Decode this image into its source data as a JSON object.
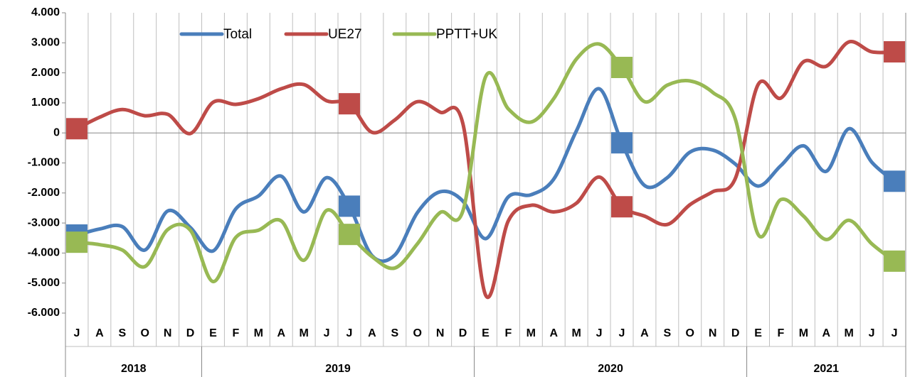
{
  "chart_data": {
    "type": "line",
    "category_groups": [
      {
        "label": "2018",
        "categories": [
          "J",
          "A",
          "S",
          "O",
          "N",
          "D"
        ]
      },
      {
        "label": "2019",
        "categories": [
          "E",
          "F",
          "M",
          "A",
          "M",
          "J",
          "J",
          "A",
          "S",
          "O",
          "N",
          "D"
        ]
      },
      {
        "label": "2020",
        "categories": [
          "E",
          "F",
          "M",
          "A",
          "M",
          "J",
          "J",
          "A",
          "S",
          "O",
          "N",
          "D"
        ]
      },
      {
        "label": "2021",
        "categories": [
          "E",
          "F",
          "M",
          "A",
          "M",
          "J",
          "J"
        ]
      }
    ],
    "series": [
      {
        "name": "Total",
        "color": "#4a7ebb",
        "values": [
          -3400,
          -3200,
          -3120,
          -3900,
          -2600,
          -3150,
          -3930,
          -2530,
          -2100,
          -1440,
          -2630,
          -1490,
          -2440,
          -4090,
          -4070,
          -2650,
          -1960,
          -2270,
          -3520,
          -2130,
          -2060,
          -1540,
          70,
          1470,
          -330,
          -1750,
          -1490,
          -640,
          -570,
          -1040,
          -1770,
          -1090,
          -430,
          -1280,
          140,
          -970,
          -1610
        ]
      },
      {
        "name": "UE27",
        "color": "#be4b48",
        "values": [
          140,
          520,
          780,
          570,
          620,
          -20,
          1020,
          950,
          1140,
          1470,
          1610,
          1070,
          970,
          20,
          430,
          1040,
          690,
          310,
          -5400,
          -2930,
          -2410,
          -2630,
          -2340,
          -1470,
          -2460,
          -2770,
          -3050,
          -2390,
          -1960,
          -1510,
          1610,
          1160,
          2370,
          2220,
          3030,
          2700,
          2700
        ]
      },
      {
        "name": "PPTT+UK",
        "color": "#98b954",
        "values": [
          -3640,
          -3720,
          -3900,
          -4450,
          -3220,
          -3240,
          -4950,
          -3480,
          -3240,
          -2930,
          -4240,
          -2580,
          -3380,
          -4120,
          -4500,
          -3690,
          -2650,
          -2600,
          1870,
          800,
          360,
          1140,
          2460,
          2960,
          2180,
          1040,
          1590,
          1730,
          1350,
          450,
          -3380,
          -2220,
          -2770,
          -3550,
          -2910,
          -3690,
          -4270
        ]
      }
    ],
    "marker_indices": [
      0,
      12,
      24,
      36
    ],
    "ylim": [
      -6000,
      4000
    ],
    "yticks": [
      {
        "value": -6000,
        "label": "-6.000"
      },
      {
        "value": -5000,
        "label": "-5.000"
      },
      {
        "value": -4000,
        "label": "-4.000"
      },
      {
        "value": -3000,
        "label": "-3.000"
      },
      {
        "value": -2000,
        "label": "-2.000"
      },
      {
        "value": -1000,
        "label": "-1.000"
      },
      0,
      {
        "value": 1000,
        "label": "1.000"
      },
      {
        "value": 2000,
        "label": "2.000"
      },
      {
        "value": 3000,
        "label": "3.000"
      },
      {
        "value": 4000,
        "label": "4.000"
      }
    ],
    "grid": false
  }
}
